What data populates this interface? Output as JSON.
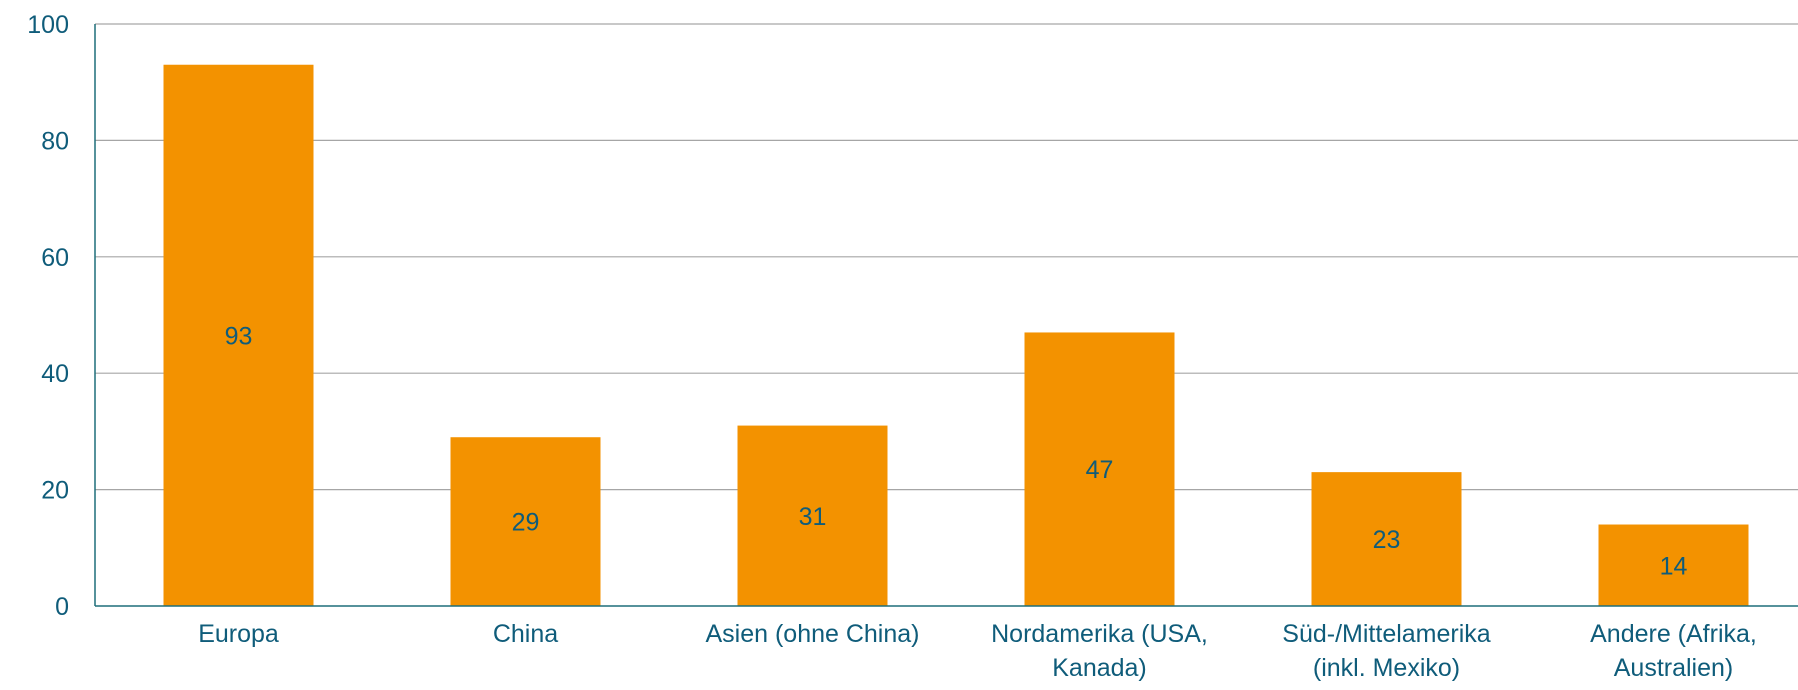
{
  "chart_data": {
    "type": "bar",
    "title": "",
    "xlabel": "",
    "ylabel": "",
    "categories": [
      [
        "Europa"
      ],
      [
        "China"
      ],
      [
        "Asien (ohne China)"
      ],
      [
        "Nordamerika (USA,",
        "Kanada)"
      ],
      [
        "Süd-/Mittelamerika",
        "(inkl. Mexiko)"
      ],
      [
        "Andere (Afrika,",
        "Australien)"
      ]
    ],
    "values": [
      93,
      29,
      31,
      47,
      23,
      14
    ],
    "data_labels": [
      "93",
      "29",
      "31",
      "47",
      "23",
      "14"
    ],
    "ylim": [
      0,
      100
    ],
    "yticks": [
      0,
      20,
      40,
      60,
      80,
      100
    ],
    "ytick_labels": [
      "0",
      "20",
      "40",
      "60",
      "80",
      "100"
    ],
    "grid": true,
    "legend": "none",
    "colors": {
      "bar": "#F39200",
      "text": "#0F5C7A",
      "grid": "#A6A6A6",
      "axis": "#1E6E7A"
    }
  }
}
